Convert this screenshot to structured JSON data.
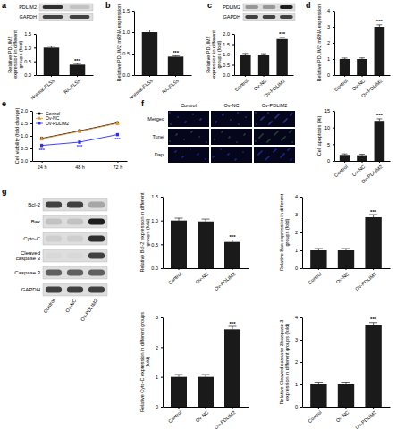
{
  "chart_data": [
    {
      "type": "bar",
      "ylabel": "Relative PDLIM2 expression in different groups (fold)",
      "categories": [
        "Normal-FLSs",
        "RA-FLSs"
      ],
      "values": [
        1.0,
        0.38
      ],
      "errors": [
        0.05,
        0.04
      ],
      "significance": [
        null,
        "***"
      ],
      "color": "#1a1a1a",
      "ylim": [
        0,
        1.5
      ],
      "yticks": [
        {
          "value": 0,
          "label": "0.0"
        },
        {
          "value": 0.5,
          "label": "0.5"
        },
        {
          "value": 1,
          "label": "1.0"
        },
        {
          "value": 1.5,
          "label": "1.5"
        }
      ]
    },
    {
      "type": "bar",
      "ylabel": "Relative PDLIM2 mRNA expression",
      "categories": [
        "Normal-FLSs",
        "RA-FLSs"
      ],
      "values": [
        1.0,
        0.43
      ],
      "errors": [
        0.05,
        0.02
      ],
      "significance": [
        null,
        "***"
      ],
      "color": "#1a1a1a",
      "ylim": [
        0,
        1.5
      ],
      "yticks": [
        {
          "value": 0,
          "label": "0.0"
        },
        {
          "value": 0.5,
          "label": "0.5"
        },
        {
          "value": 1,
          "label": "1.0"
        },
        {
          "value": 1.5,
          "label": "1.5"
        }
      ]
    },
    {
      "type": "bar",
      "ylabel": "Relative PDLIM2 expression in different groups (fold)",
      "categories": [
        "Control",
        "Ov-NC",
        "Ov-PDLIM2"
      ],
      "values": [
        1.0,
        0.99,
        1.75
      ],
      "errors": [
        0.05,
        0.05,
        0.08
      ],
      "significance": [
        null,
        null,
        "***"
      ],
      "color": "#1a1a1a",
      "ylim": [
        0,
        2
      ],
      "yticks": [
        {
          "value": 0,
          "label": "0.0"
        },
        {
          "value": 0.5,
          "label": "0.5"
        },
        {
          "value": 1,
          "label": "1.0"
        },
        {
          "value": 1.5,
          "label": "1.5"
        },
        {
          "value": 2,
          "label": "2.0"
        }
      ]
    },
    {
      "type": "bar",
      "ylabel": "Relative PDLIM2 mRNA expression",
      "categories": [
        "Control",
        "Ov-NC",
        "Ov-PDLIM2"
      ],
      "values": [
        1.0,
        1.0,
        3.0
      ],
      "errors": [
        0.06,
        0.07,
        0.12
      ],
      "significance": [
        null,
        null,
        "***"
      ],
      "color": "#1a1a1a",
      "ylim": [
        0,
        4
      ],
      "yticks": [
        0,
        1,
        2,
        3,
        4
      ]
    },
    {
      "type": "line",
      "ylabel": "Cell viability (fold change)",
      "categories": [
        "24 h",
        "48 h",
        "72 h"
      ],
      "legend": "upper left",
      "ylim": [
        0,
        2
      ],
      "yticks": [
        {
          "value": 0,
          "label": "0.0"
        },
        {
          "value": 0.5,
          "label": "0.5"
        },
        {
          "value": 1,
          "label": "1.0"
        },
        {
          "value": 1.5,
          "label": "1.5"
        },
        {
          "value": 2,
          "label": "2.0"
        }
      ],
      "series": [
        {
          "name": "Control",
          "color": "#000000",
          "marker": "circle",
          "values": [
            0.9,
            1.2,
            1.52
          ],
          "errors": [
            0.05,
            0.05,
            0.05
          ]
        },
        {
          "name": "Ov-NC",
          "color": "#e8962e",
          "marker": "triangle",
          "values": [
            0.88,
            1.18,
            1.5
          ],
          "errors": [
            0.05,
            0.05,
            0.05
          ]
        },
        {
          "name": "Ov-PDLIM2",
          "color": "#2b2bff",
          "marker": "square",
          "values": [
            0.62,
            0.75,
            1.05
          ],
          "errors": [
            0.05,
            0.05,
            0.05
          ],
          "significance": [
            "***",
            "***",
            "***"
          ]
        }
      ]
    },
    {
      "type": "bar",
      "ylabel": "Cell apoptosis (%)",
      "categories": [
        "Control",
        "Ov-NC",
        "Ov-PDLIM2"
      ],
      "values": [
        1.8,
        1.7,
        12.0
      ],
      "errors": [
        0.3,
        0.3,
        0.6
      ],
      "significance": [
        null,
        null,
        "***"
      ],
      "color": "#1a1a1a",
      "ylim": [
        0,
        15
      ],
      "yticks": [
        0,
        5,
        10,
        15
      ]
    },
    {
      "type": "bar",
      "ylabel": "Relative Bcl-2 expression in different groups (fold)",
      "categories": [
        "Control",
        "Ov-NC",
        "Ov-PDLIM2"
      ],
      "values": [
        1.0,
        0.98,
        0.55
      ],
      "errors": [
        0.05,
        0.05,
        0.04
      ],
      "significance": [
        null,
        null,
        "***"
      ],
      "color": "#1a1a1a",
      "ylim": [
        0,
        1.5
      ],
      "yticks": [
        {
          "value": 0,
          "label": "0.0"
        },
        {
          "value": 0.5,
          "label": "0.5"
        },
        {
          "value": 1,
          "label": "1.0"
        },
        {
          "value": 1.5,
          "label": "1.5"
        }
      ]
    },
    {
      "type": "bar",
      "ylabel": "Relative Bax expression in different groups (fold)",
      "categories": [
        "Control",
        "Ov-NC",
        "Ov-PDLIM2"
      ],
      "values": [
        1.0,
        1.0,
        2.85
      ],
      "errors": [
        0.1,
        0.1,
        0.15
      ],
      "significance": [
        null,
        null,
        "***"
      ],
      "color": "#1a1a1a",
      "ylim": [
        0,
        4
      ],
      "yticks": [
        0,
        1,
        2,
        3,
        4
      ]
    },
    {
      "type": "bar",
      "ylabel": "Relative Cyto-C expression in different groups (fold)",
      "categories": [
        "Control",
        "Ov-NC",
        "Ov-PDLIM2"
      ],
      "values": [
        1.0,
        1.0,
        2.6
      ],
      "errors": [
        0.08,
        0.08,
        0.1
      ],
      "significance": [
        null,
        null,
        "***"
      ],
      "color": "#1a1a1a",
      "ylim": [
        0,
        3
      ],
      "yticks": [
        0,
        1,
        2,
        3
      ]
    },
    {
      "type": "bar",
      "ylabel": "Relative Cleaved caspase 3/caspase 3 expression in different groups (fold)",
      "categories": [
        "Control",
        "Ov-NC",
        "Ov-PDLIM2"
      ],
      "values": [
        1.0,
        1.0,
        3.65
      ],
      "errors": [
        0.1,
        0.1,
        0.12
      ],
      "significance": [
        null,
        null,
        "***"
      ],
      "color": "#1a1a1a",
      "ylim": [
        0,
        4
      ],
      "yticks": [
        0,
        1,
        2,
        3,
        4
      ]
    }
  ],
  "figure": {
    "letters": [
      "a",
      "b",
      "c",
      "d",
      "e",
      "f",
      "g"
    ],
    "blots": [
      {
        "bands": [
          "PDLIM2",
          "GAPDH"
        ]
      },
      {
        "bands": [
          "PDLIM2",
          "GAPDH"
        ]
      },
      {
        "bands": [
          "Bcl-2",
          "Bax",
          "Cyto-C",
          "Cleaved caspase 3",
          "Caspase 3",
          "GAPDH"
        ],
        "lanes": [
          "Control",
          "Ov-NC",
          "Ov-PDLIM2"
        ]
      }
    ],
    "tunel": {
      "rows": [
        "Merged",
        "Tunel",
        "Dapi"
      ],
      "columns": [
        "Control",
        "Ov-NC",
        "Ov-PDLIM2"
      ]
    }
  }
}
